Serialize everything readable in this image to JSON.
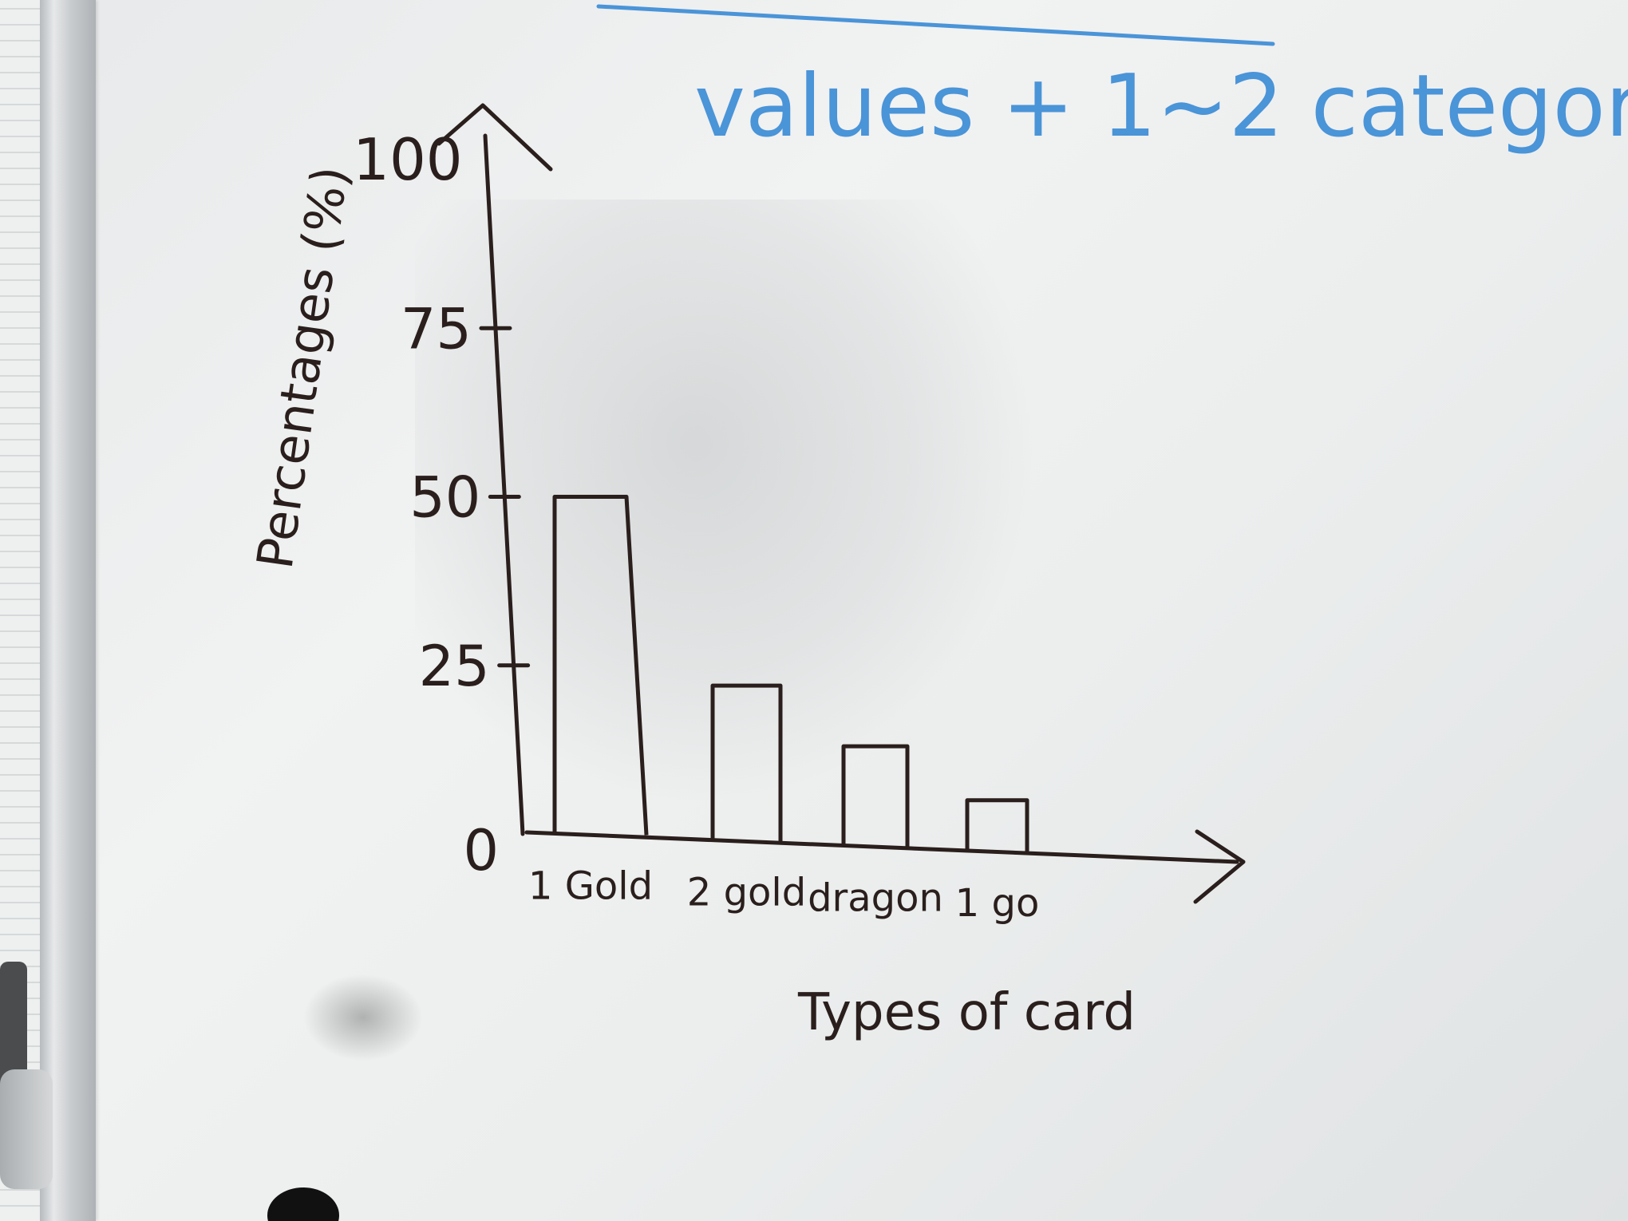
{
  "header_note": "values + 1~2 categor",
  "chart_data": {
    "type": "bar",
    "ylabel": "Percentages (%)",
    "xlabel": "Types of card",
    "ylim": [
      0,
      100
    ],
    "yticks": [
      "0",
      "25",
      "50",
      "75",
      "100"
    ],
    "categories": [
      "1 Gold",
      "2 gold",
      "dragon",
      "1 go"
    ],
    "values": [
      50,
      22,
      13,
      5
    ],
    "grid": false,
    "legend": "none"
  },
  "colors": {
    "marker": "#2a1f1c",
    "blue_marker": "#4a94d8",
    "board": "#eceeee"
  }
}
